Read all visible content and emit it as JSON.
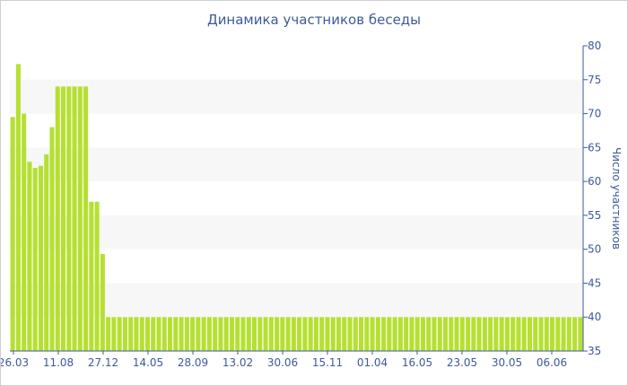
{
  "chart_data": {
    "type": "bar",
    "title": "Динамика участников беседы",
    "ylabel": "Число участников",
    "xlabel": "",
    "ylim": [
      35,
      80
    ],
    "yticks": [
      35,
      40,
      45,
      50,
      55,
      60,
      65,
      70,
      75,
      80
    ],
    "x_tick_labels": [
      "26.03",
      "11.08",
      "27.12",
      "14.05",
      "28.09",
      "13.02",
      "30.06",
      "15.11",
      "01.04",
      "16.05",
      "23.05",
      "30.05",
      "06.06"
    ],
    "grid": "alternating horizontal bands",
    "legend": "none",
    "colors": {
      "bar": "#b5e032",
      "band": "#f7f7f7",
      "text": "#3d5a99",
      "axis": "#3d5a99"
    },
    "series": [
      {
        "values": [
          69.5,
          77.3,
          70,
          62.9,
          62,
          62.3,
          64,
          68,
          74,
          74,
          74,
          74,
          74,
          74,
          57,
          57,
          49.3,
          40,
          40,
          40,
          40,
          40,
          40,
          40,
          40,
          40,
          40,
          40,
          40,
          40,
          40,
          40,
          40,
          40,
          40,
          40,
          40,
          40,
          40,
          40,
          40,
          40,
          40,
          40,
          40,
          40,
          40,
          40,
          40,
          40,
          40,
          40,
          40,
          40,
          40,
          40,
          40,
          40,
          40,
          40,
          40,
          40,
          40,
          40,
          40,
          40,
          40,
          40,
          40,
          40,
          40,
          40,
          40,
          40,
          40,
          40,
          40,
          40,
          40,
          40,
          40,
          40,
          40,
          40,
          40,
          40,
          40,
          40,
          40,
          40,
          40,
          40,
          40,
          40,
          40,
          40,
          40,
          40,
          40,
          40,
          40,
          40
        ]
      }
    ]
  }
}
